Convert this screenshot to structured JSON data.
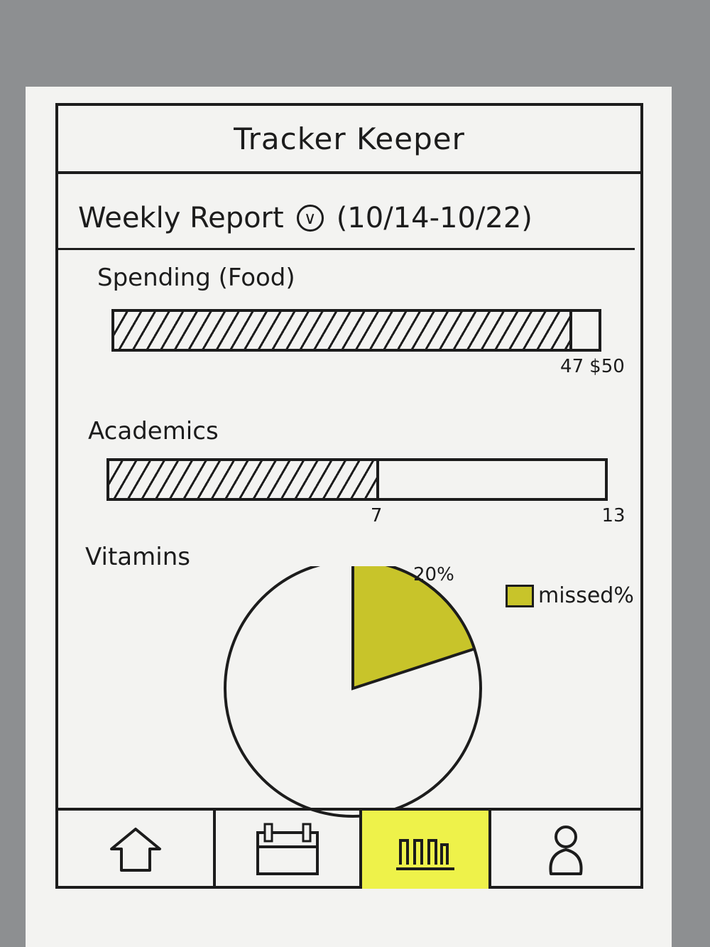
{
  "app": {
    "title": "Tracker Keeper"
  },
  "report": {
    "title": "Weekly Report",
    "date_range": "(10/14-10/22)",
    "dropdown_icon": "chevron-down-circle-icon"
  },
  "spending": {
    "label": "Spending (Food)",
    "value": 47,
    "max": 50,
    "value_label": "47",
    "max_label": "$50"
  },
  "academics": {
    "label": "Academics",
    "value": 7,
    "max": 13,
    "value_label": "7",
    "max_label": "13"
  },
  "vitamins": {
    "label": "Vitamins",
    "missed_percent": 20,
    "percent_label": "20%",
    "legend_label": "missed%",
    "missed_color": "#c8c42a"
  },
  "tabbar": {
    "tabs": [
      {
        "icon": "home-icon",
        "active": false
      },
      {
        "icon": "calendar-icon",
        "active": false
      },
      {
        "icon": "bar-chart-icon",
        "active": true
      },
      {
        "icon": "profile-icon",
        "active": false
      }
    ],
    "active_color": "#eef24a"
  }
}
